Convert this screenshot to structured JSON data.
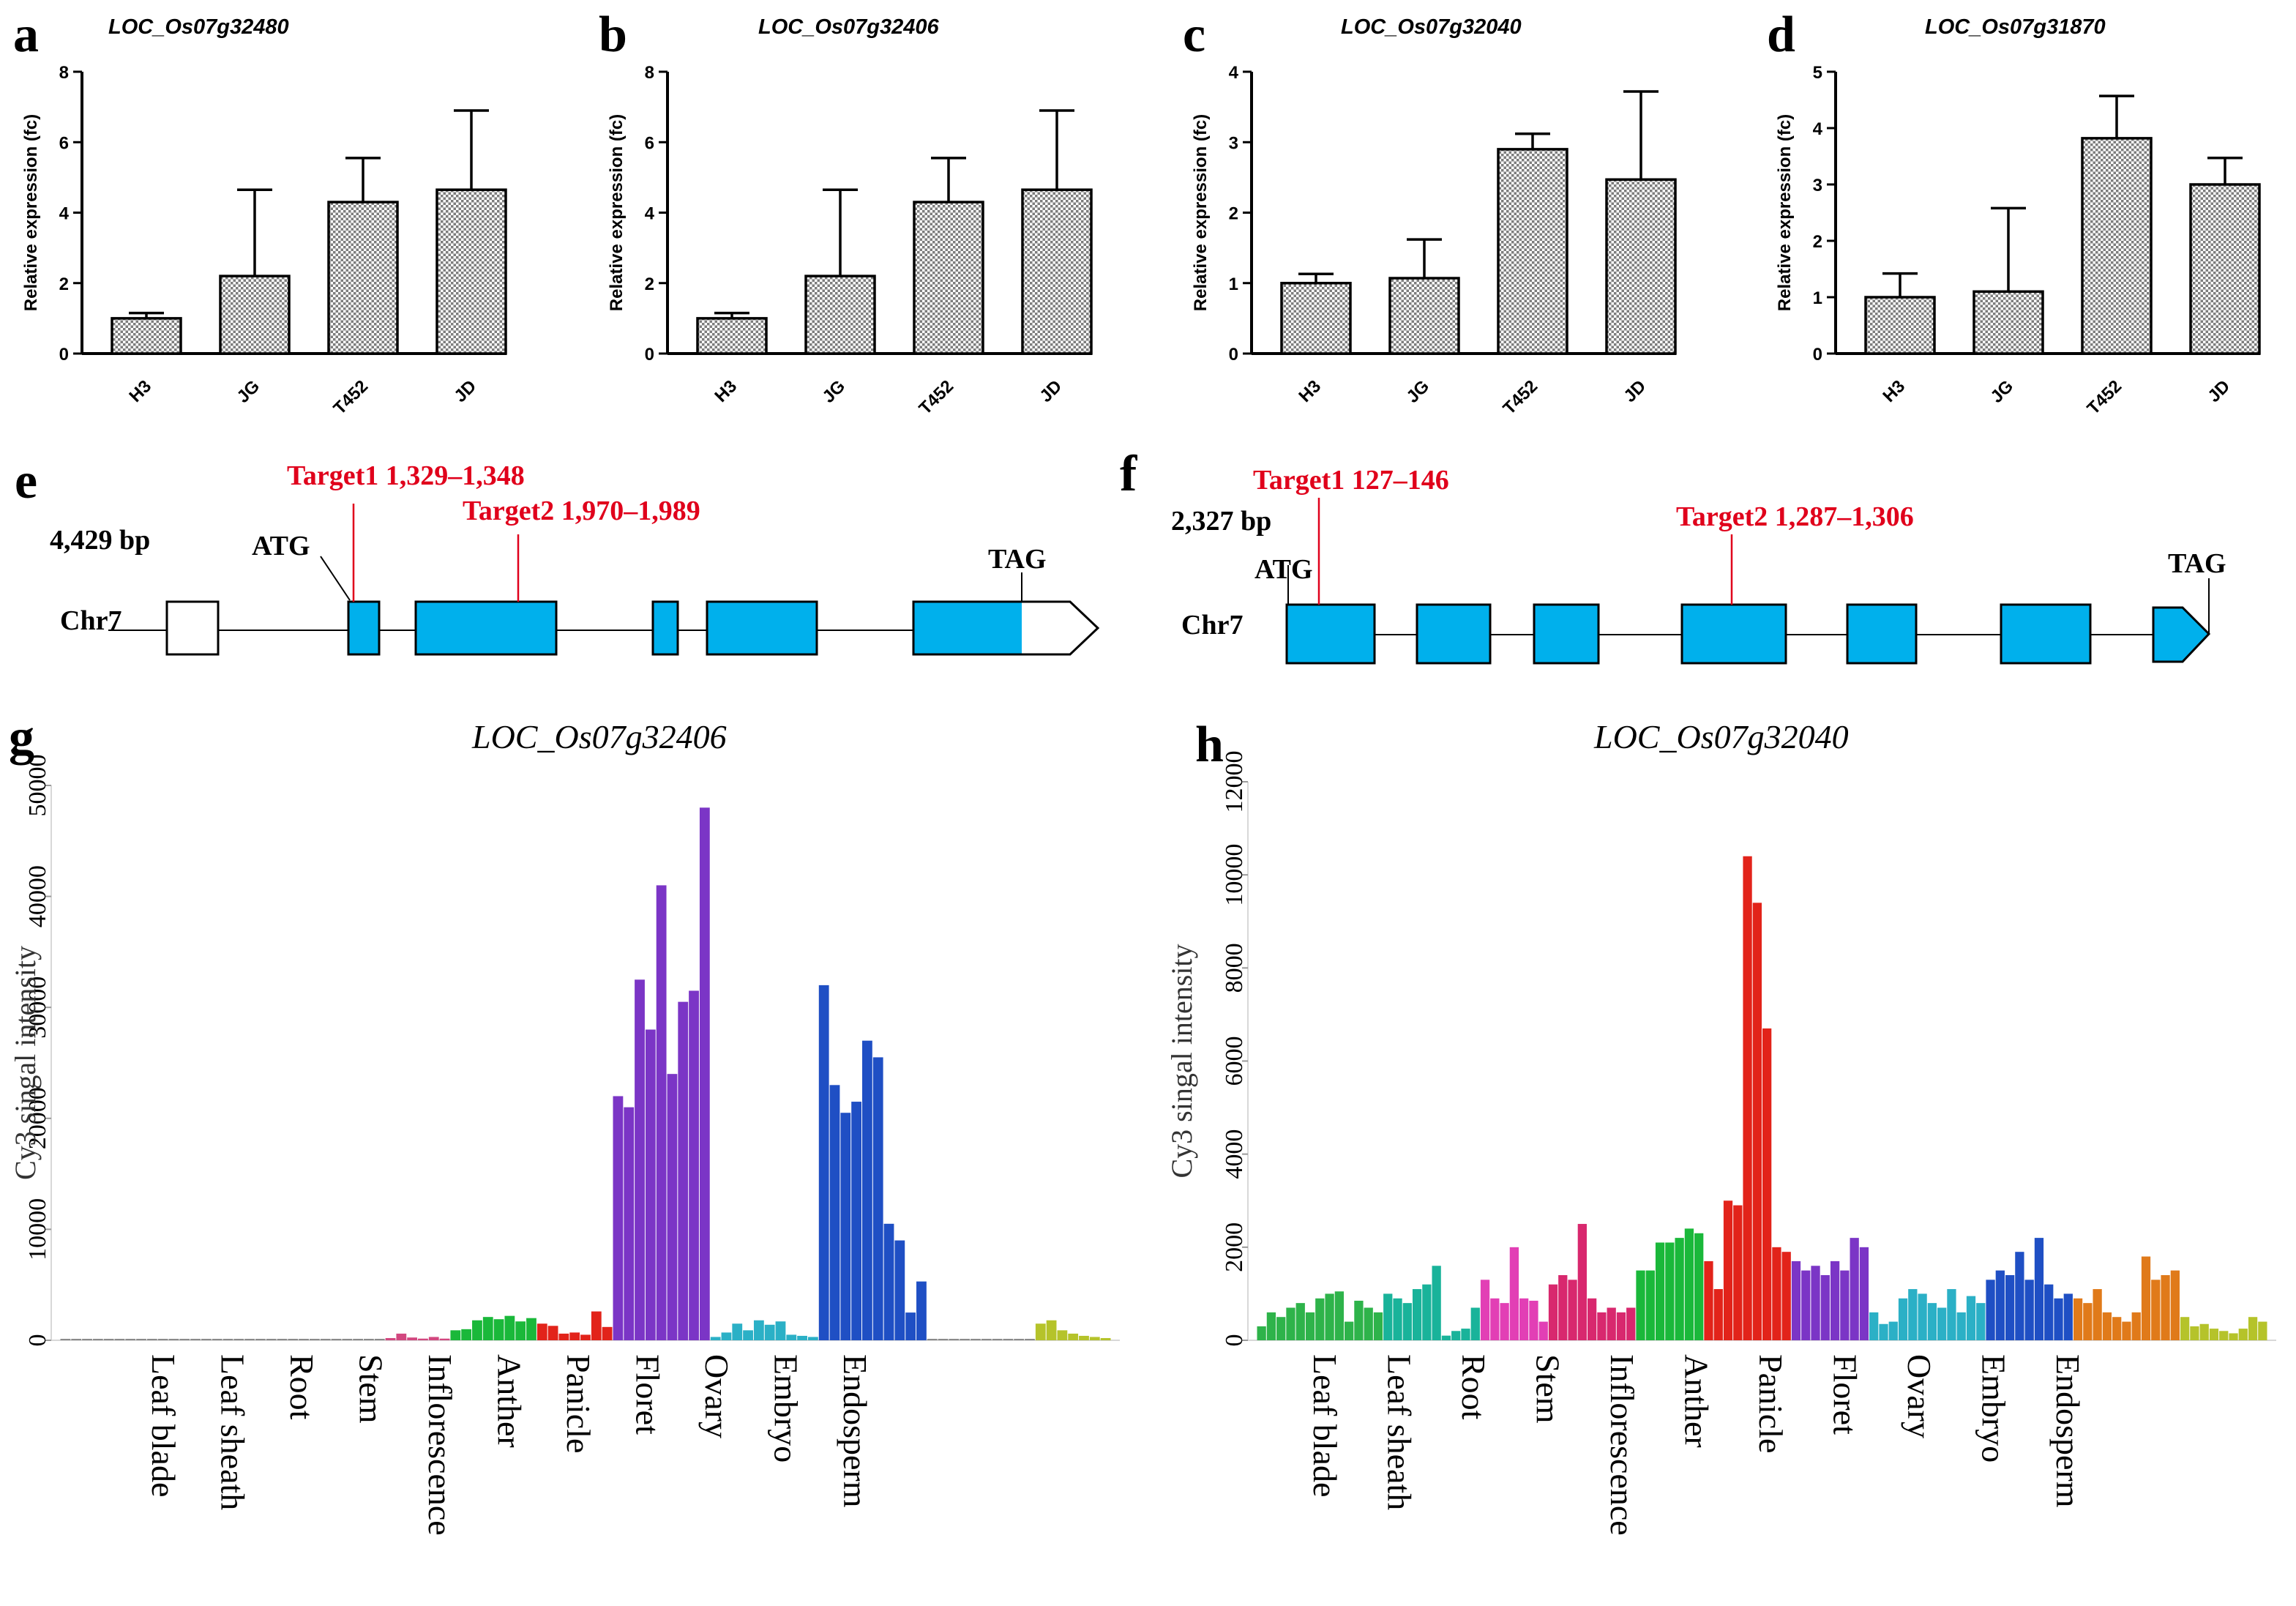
{
  "panel_letters": [
    "a",
    "b",
    "c",
    "d",
    "e",
    "f",
    "g",
    "h"
  ],
  "chart_data": [
    {
      "panel": "a",
      "type": "bar",
      "title": "LOC_Os07g32480",
      "ylabel": "Relative expression (fc)",
      "xlabel": "",
      "categories": [
        "H3",
        "JG",
        "T452",
        "JD"
      ],
      "values": [
        1.0,
        2.2,
        4.3,
        4.65
      ],
      "errors": [
        0.15,
        2.45,
        1.25,
        2.25
      ],
      "ylim": [
        0,
        8
      ],
      "yticks": [
        "0",
        "2",
        "4",
        "6",
        "8"
      ]
    },
    {
      "panel": "b",
      "type": "bar",
      "title": "LOC_Os07g32406",
      "ylabel": "Relative expression (fc)",
      "xlabel": "",
      "categories": [
        "H3",
        "JG",
        "T452",
        "JD"
      ],
      "values": [
        1.0,
        2.2,
        4.3,
        4.65
      ],
      "errors": [
        0.15,
        2.45,
        1.25,
        2.25
      ],
      "ylim": [
        0,
        8
      ],
      "yticks": [
        "0",
        "2",
        "4",
        "6",
        "8"
      ]
    },
    {
      "panel": "c",
      "type": "bar",
      "title": "LOC_Os07g32040",
      "ylabel": "Relative expression (fc)",
      "xlabel": "",
      "categories": [
        "H3",
        "JG",
        "T452",
        "JD"
      ],
      "values": [
        1.0,
        1.07,
        2.9,
        2.47
      ],
      "errors": [
        0.13,
        0.55,
        0.22,
        1.25
      ],
      "ylim": [
        0,
        4
      ],
      "yticks": [
        "0",
        "1",
        "2",
        "3",
        "4"
      ]
    },
    {
      "panel": "d",
      "type": "bar",
      "title": "LOC_Os07g31870",
      "ylabel": "Relative expression (fc)",
      "xlabel": "",
      "categories": [
        "H3",
        "JG",
        "T452",
        "JD"
      ],
      "values": [
        1.0,
        1.1,
        3.82,
        3.0
      ],
      "errors": [
        0.42,
        1.48,
        0.75,
        0.47
      ],
      "ylim": [
        0,
        5
      ],
      "yticks": [
        "0",
        "1",
        "2",
        "3",
        "4",
        "5"
      ]
    },
    {
      "panel": "g",
      "type": "bar",
      "title": "LOC_Os07g32406",
      "ylabel": "Cy3 singal intensity",
      "xlabel": "",
      "ylim": [
        0,
        50000
      ],
      "yticks": [
        "0",
        "10000",
        "20000",
        "30000",
        "40000",
        "50000"
      ],
      "series": [
        {
          "name": "Leaf blade",
          "color": "#8a8a8a",
          "values": [
            60,
            60,
            60,
            60,
            60,
            60,
            60,
            60,
            60,
            60
          ]
        },
        {
          "name": "Leaf sheath",
          "color": "#8a8a8a",
          "values": [
            60,
            60,
            60,
            60,
            60,
            60,
            60,
            60,
            60,
            60
          ]
        },
        {
          "name": "Root",
          "color": "#8a8a8a",
          "values": [
            60,
            60,
            60,
            60,
            60,
            60,
            60,
            60,
            60,
            60
          ]
        },
        {
          "name": "Stem",
          "color": "#d2477f",
          "values": [
            200,
            600,
            250,
            150,
            300,
            150
          ]
        },
        {
          "name": "Inflorescence",
          "color": "#1ab83a",
          "values": [
            900,
            1000,
            1800,
            2100,
            1900,
            2200,
            1700,
            2000
          ]
        },
        {
          "name": "Anther",
          "color": "#e2231a",
          "values": [
            1500,
            1300,
            600,
            700,
            500,
            2600,
            1200
          ]
        },
        {
          "name": "Panicle",
          "color": "#7b35c6",
          "values": [
            22000,
            21000,
            32500,
            28000,
            41000,
            24000,
            30500,
            31500,
            48000
          ]
        },
        {
          "name": "Floret",
          "color": "#2bb0c6",
          "values": [
            300,
            700,
            1500,
            900,
            1800,
            1400,
            1700,
            500,
            400,
            300
          ]
        },
        {
          "name": "Ovary",
          "color": "#1f4fc4",
          "values": [
            32000,
            23000,
            20500,
            21500,
            27000,
            25500,
            10500,
            9000,
            2500,
            5300
          ]
        },
        {
          "name": "Embryo",
          "color": "#8a8a8a",
          "values": [
            120,
            120,
            120,
            120,
            120,
            120,
            120,
            120,
            120,
            120
          ]
        },
        {
          "name": "Endosperm",
          "color": "#b5c32a",
          "values": [
            1500,
            1800,
            900,
            600,
            400,
            300,
            200
          ]
        }
      ]
    },
    {
      "panel": "h",
      "type": "bar",
      "title": "LOC_Os07g32040",
      "ylabel": "Cy3 singal intensity",
      "xlabel": "",
      "ylim": [
        0,
        12000
      ],
      "yticks": [
        "0",
        "2000",
        "4000",
        "6000",
        "8000",
        "10000",
        "12000"
      ],
      "series": [
        {
          "name": "Leaf blade",
          "color": "#2eb34a",
          "values": [
            300,
            600,
            500,
            700,
            800,
            600,
            900,
            1000,
            1050,
            400,
            850,
            700,
            600
          ]
        },
        {
          "name": "Leaf sheath",
          "color": "#19b39a",
          "values": [
            1000,
            900,
            800,
            1100,
            1200,
            1600,
            100,
            200,
            250,
            700
          ]
        },
        {
          "name": "Root",
          "color": "#e23fb5",
          "values": [
            1300,
            900,
            800,
            2000,
            900,
            850,
            400
          ]
        },
        {
          "name": "Stem",
          "color": "#d8286e",
          "values": [
            1200,
            1400,
            1300,
            2500,
            900,
            600,
            700,
            600,
            700
          ]
        },
        {
          "name": "Inflorescence",
          "color": "#1ab83a",
          "values": [
            1500,
            1500,
            2100,
            2100,
            2200,
            2400,
            2300
          ]
        },
        {
          "name": "Anther",
          "color": "#e2231a",
          "values": [
            1700,
            1100,
            3000,
            2900,
            10400,
            9400,
            6700,
            2000,
            1900
          ]
        },
        {
          "name": "Panicle",
          "color": "#7b35c6",
          "values": [
            1700,
            1500,
            1600,
            1400,
            1700,
            1500,
            2200,
            2000
          ]
        },
        {
          "name": "Floret",
          "color": "#2bb0c6",
          "values": [
            600,
            350,
            400,
            900,
            1100,
            1000,
            800,
            700,
            1100,
            600,
            950,
            800
          ]
        },
        {
          "name": "Ovary",
          "color": "#1f4fc4",
          "values": [
            1300,
            1500,
            1400,
            1900,
            1300,
            2200,
            1200,
            900,
            1000
          ]
        },
        {
          "name": "Embryo",
          "color": "#e07a1a",
          "values": [
            900,
            800,
            1100,
            600,
            500,
            400,
            600,
            1800,
            1300,
            1400,
            1500
          ]
        },
        {
          "name": "Endosperm",
          "color": "#b5c32a",
          "values": [
            500,
            300,
            350,
            250,
            200,
            150,
            250,
            500,
            400
          ]
        }
      ]
    }
  ],
  "gene_structures": [
    {
      "panel": "e",
      "length_label": "4,429 bp",
      "chrom_label": "Chr7",
      "start_codon": "ATG",
      "stop_codon": "TAG",
      "targets": [
        {
          "label": "Target1  1,329–1,348"
        },
        {
          "label": "Target2 1,970–1,989"
        }
      ]
    },
    {
      "panel": "f",
      "length_label": "2,327 bp",
      "chrom_label": "Chr7",
      "start_codon": "ATG",
      "stop_codon": "TAG",
      "targets": [
        {
          "label": "Target1 127–146"
        },
        {
          "label": "Target2 1,287–1,306"
        }
      ]
    }
  ]
}
